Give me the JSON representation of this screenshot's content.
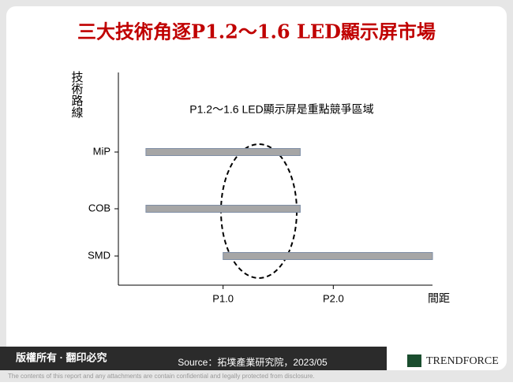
{
  "chart_data": {
    "type": "range-bar",
    "title": "三大技術角逐P1.2～1.6 LED顯示屏市場",
    "y_label": "技術路線",
    "x_label": "間距",
    "annotation": "P1.2～1.6 LED顯示屏是重點競爭區域",
    "categories": [
      "MiP",
      "COB",
      "SMD"
    ],
    "start": [
      0.3,
      0.3,
      1.0
    ],
    "end": [
      1.7,
      1.7,
      2.9
    ],
    "color": "#a6a6a6",
    "xlim": [
      0.05,
      2.9
    ],
    "xticks": [
      {
        "value": 1,
        "label": "P1.0"
      },
      {
        "value": 2,
        "label": "P2.0"
      }
    ]
  },
  "footer": {
    "rights": "版權所有 · 翻印必究",
    "source": "Source：拓墣產業研究院，2023/05",
    "brand": "TRENDFORCE",
    "disclaimer": "The contents of this report and any attachments are contain confidential and legally protected from disclosure."
  }
}
